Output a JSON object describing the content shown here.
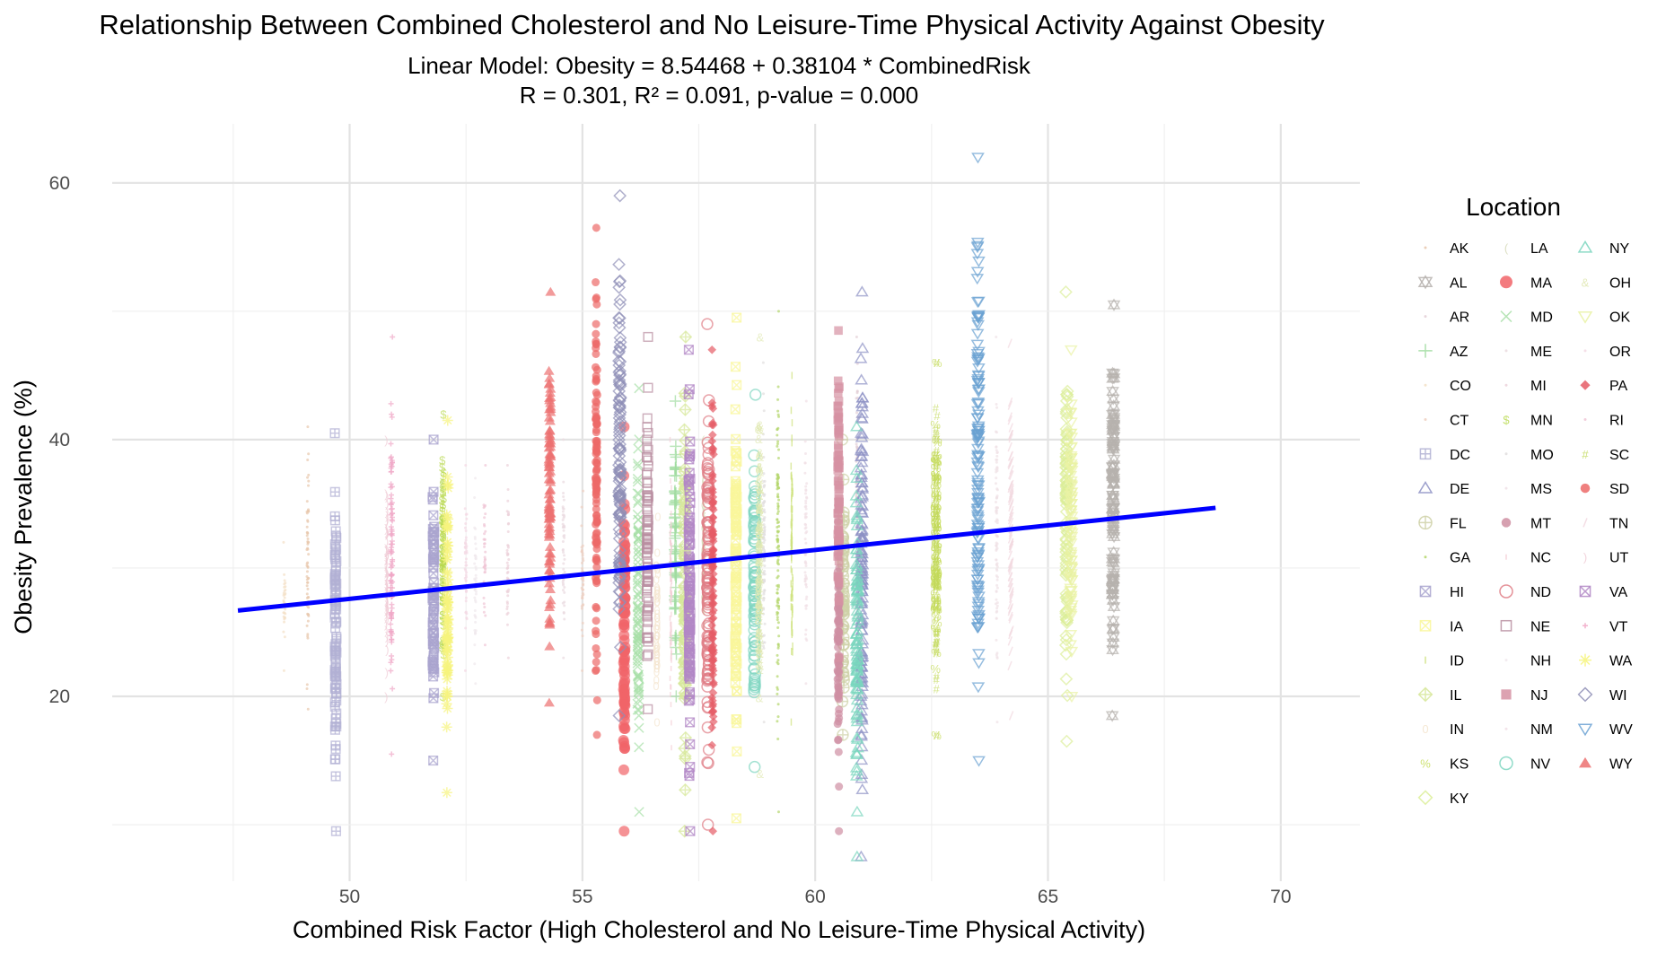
{
  "chart_data": {
    "type": "scatter",
    "title": "Relationship Between Combined Cholesterol and No Leisure-Time Physical Activity Against Obesity",
    "subtitle_line1": "Linear Model: Obesity = 8.54468 + 0.38104 * CombinedRisk",
    "subtitle_line2": "R = 0.301, R² = 0.091, p-value = 0.000",
    "xlabel": "Combined Risk Factor (High Cholesterol and No Leisure-Time Physical Activity)",
    "ylabel": "Obesity Prevalence (%)",
    "xlim": [
      44.9,
      71.7
    ],
    "ylim": [
      5.6,
      64.6
    ],
    "x_ticks": [
      50,
      55,
      60,
      65,
      70
    ],
    "x_tick_labels": [
      "50",
      "55",
      "60",
      "65",
      "70"
    ],
    "y_ticks": [
      20,
      40,
      60
    ],
    "y_tick_labels": [
      "20",
      "40",
      "60"
    ],
    "grid": true,
    "legend_title": "Location",
    "legend_position": "right",
    "trend_line": {
      "intercept": 8.54468,
      "slope": 0.38104,
      "x_range": [
        47.6,
        68.6
      ],
      "color": "#0000ff"
    },
    "series": [
      {
        "name": "AK",
        "x": 49.1,
        "y_range": [
          19,
          41
        ],
        "shape": "dot",
        "color": "#e8c7ad"
      },
      {
        "name": "AL",
        "x": 66.4,
        "y_range": [
          18.5,
          50.5
        ],
        "shape": "star-triangle",
        "color": "#b6b2ae"
      },
      {
        "name": "AR",
        "x": 60.9,
        "y_range": [
          20,
          48
        ],
        "shape": "dot",
        "color": "#e3cfd6"
      },
      {
        "name": "AZ",
        "x": 57.0,
        "y_range": [
          20,
          43
        ],
        "shape": "plus",
        "color": "#9fdc9f"
      },
      {
        "name": "CO",
        "x": 48.6,
        "y_range": [
          22,
          32
        ],
        "shape": "dot",
        "color": "#f3e0c6"
      },
      {
        "name": "CT",
        "x": 55.0,
        "y_range": [
          22,
          36
        ],
        "shape": "dot",
        "color": "#eecfc0"
      },
      {
        "name": "DC",
        "x": 49.7,
        "y_range": [
          9.5,
          40.5
        ],
        "shape": "boxplus",
        "color": "#b2b1d4"
      },
      {
        "name": "DE",
        "x": 61.0,
        "y_range": [
          7.5,
          51.5
        ],
        "shape": "triangle",
        "color": "#8d91c4"
      },
      {
        "name": "FL",
        "x": 60.6,
        "y_range": [
          17,
          40
        ],
        "shape": "circleplus",
        "color": "#cfd1a8"
      },
      {
        "name": "GA",
        "x": 59.2,
        "y_range": [
          11,
          50
        ],
        "shape": "dot",
        "color": "#b4d66b"
      },
      {
        "name": "HI",
        "x": 51.8,
        "y_range": [
          15,
          40
        ],
        "shape": "boxx",
        "color": "#a9a4cf"
      },
      {
        "name": "IA",
        "x": 58.3,
        "y_range": [
          10.5,
          49.5
        ],
        "shape": "boxx",
        "color": "#f9f79b"
      },
      {
        "name": "ID",
        "x": 59.5,
        "y_range": [
          18,
          45
        ],
        "shape": "bar",
        "color": "#cfe27f"
      },
      {
        "name": "IL",
        "x": 57.2,
        "y_range": [
          9.5,
          48
        ],
        "shape": "diamondplus",
        "color": "#d7e89b"
      },
      {
        "name": "IN",
        "x": 56.6,
        "y_range": [
          18,
          34
        ],
        "shape": "zero",
        "color": "#f3e4cd"
      },
      {
        "name": "KS",
        "x": 62.6,
        "y_range": [
          17,
          46
        ],
        "shape": "pct",
        "color": "#c4dc57"
      },
      {
        "name": "KY",
        "x": 65.4,
        "y_range": [
          16.5,
          51.5
        ],
        "shape": "diamond",
        "color": "#dcee99"
      },
      {
        "name": "LA",
        "x": 57.6,
        "y_range": [
          22,
          40
        ],
        "shape": "paren",
        "color": "#d6d9b8"
      },
      {
        "name": "MA",
        "x": 55.9,
        "y_range": [
          9.5,
          41
        ],
        "shape": "circlefill",
        "color": "#f16468"
      },
      {
        "name": "MD",
        "x": 56.2,
        "y_range": [
          11,
          44
        ],
        "shape": "x",
        "color": "#a8dfa8"
      },
      {
        "name": "ME",
        "x": 54.6,
        "y_range": [
          23,
          40
        ],
        "shape": "dot",
        "color": "#eadadf"
      },
      {
        "name": "MI",
        "x": 53.4,
        "y_range": [
          23,
          38
        ],
        "shape": "dot",
        "color": "#ecd2da"
      },
      {
        "name": "MN",
        "x": 52.0,
        "y_range": [
          20,
          42
        ],
        "shape": "dollar",
        "color": "#b8d94f"
      },
      {
        "name": "MO",
        "x": 58.9,
        "y_range": [
          18,
          46
        ],
        "shape": "dot",
        "color": "#e1dede"
      },
      {
        "name": "MS",
        "x": 63.9,
        "y_range": [
          18,
          48
        ],
        "shape": "dot",
        "color": "#f0e1e6"
      },
      {
        "name": "MT",
        "x": 60.5,
        "y_range": [
          9.5,
          38.5
        ],
        "shape": "dotfill",
        "color": "#cf8fa2"
      },
      {
        "name": "NC",
        "x": 56.9,
        "y_range": [
          16,
          40
        ],
        "shape": "tick",
        "color": "#f4cfd6"
      },
      {
        "name": "ND",
        "x": 57.7,
        "y_range": [
          10,
          49
        ],
        "shape": "circle",
        "color": "#df7e86"
      },
      {
        "name": "NE",
        "x": 56.4,
        "y_range": [
          19,
          48
        ],
        "shape": "square",
        "color": "#b98fa1"
      },
      {
        "name": "NH",
        "x": 52.7,
        "y_range": [
          21,
          37
        ],
        "shape": "dot",
        "color": "#f0e8ec"
      },
      {
        "name": "NJ",
        "x": 60.5,
        "y_range": [
          23,
          48.5
        ],
        "shape": "squarefill",
        "color": "#d692a3"
      },
      {
        "name": "NM",
        "x": 59.8,
        "y_range": [
          21,
          43
        ],
        "shape": "dot",
        "color": "#f1dfe6"
      },
      {
        "name": "NV",
        "x": 58.7,
        "y_range": [
          14.5,
          43.5
        ],
        "shape": "circle",
        "color": "#7fd6c1"
      },
      {
        "name": "NY",
        "x": 60.9,
        "y_range": [
          7.5,
          41
        ],
        "shape": "triangle",
        "color": "#79d5bd"
      },
      {
        "name": "OH",
        "x": 58.8,
        "y_range": [
          14,
          48
        ],
        "shape": "amp",
        "color": "#dfe8b0"
      },
      {
        "name": "OK",
        "x": 65.5,
        "y_range": [
          20,
          47
        ],
        "shape": "triangledown",
        "color": "#e9f2a4"
      },
      {
        "name": "OR",
        "x": 52.5,
        "y_range": [
          22,
          38
        ],
        "shape": "dot",
        "color": "#f3d9e4"
      },
      {
        "name": "PA",
        "x": 57.8,
        "y_range": [
          9.5,
          47
        ],
        "shape": "diamondfill",
        "color": "#e55d66"
      },
      {
        "name": "RI",
        "x": 52.9,
        "y_range": [
          24,
          38
        ],
        "shape": "dot",
        "color": "#f0c6d6"
      },
      {
        "name": "SC",
        "x": 62.6,
        "y_range": [
          17,
          46
        ],
        "shape": "hash",
        "color": "#c2d95a"
      },
      {
        "name": "SD",
        "x": 55.3,
        "y_range": [
          17,
          56.5
        ],
        "shape": "dotfill",
        "color": "#ec6a68"
      },
      {
        "name": "TN",
        "x": 64.2,
        "y_range": [
          18.5,
          47.5
        ],
        "shape": "slash",
        "color": "#f2d8e0"
      },
      {
        "name": "UT",
        "x": 50.8,
        "y_range": [
          20,
          40
        ],
        "shape": "rparen",
        "color": "#f0ccd6"
      },
      {
        "name": "VA",
        "x": 57.3,
        "y_range": [
          9.5,
          47
        ],
        "shape": "boxx",
        "color": "#b288c6"
      },
      {
        "name": "VT",
        "x": 50.9,
        "y_range": [
          15.5,
          48
        ],
        "shape": "tinyplus",
        "color": "#f0a6c6"
      },
      {
        "name": "WA",
        "x": 52.1,
        "y_range": [
          12.5,
          41.5
        ],
        "shape": "asterisk",
        "color": "#f6f47d"
      },
      {
        "name": "WI",
        "x": 55.8,
        "y_range": [
          18.5,
          59
        ],
        "shape": "diamond",
        "color": "#8f8fb6"
      },
      {
        "name": "WV",
        "x": 63.5,
        "y_range": [
          15,
          62
        ],
        "shape": "triangledown",
        "color": "#6aa1d2"
      },
      {
        "name": "WY",
        "x": 54.3,
        "y_range": [
          19.5,
          51.5
        ],
        "shape": "trianglefill",
        "color": "#ec7070"
      }
    ]
  }
}
